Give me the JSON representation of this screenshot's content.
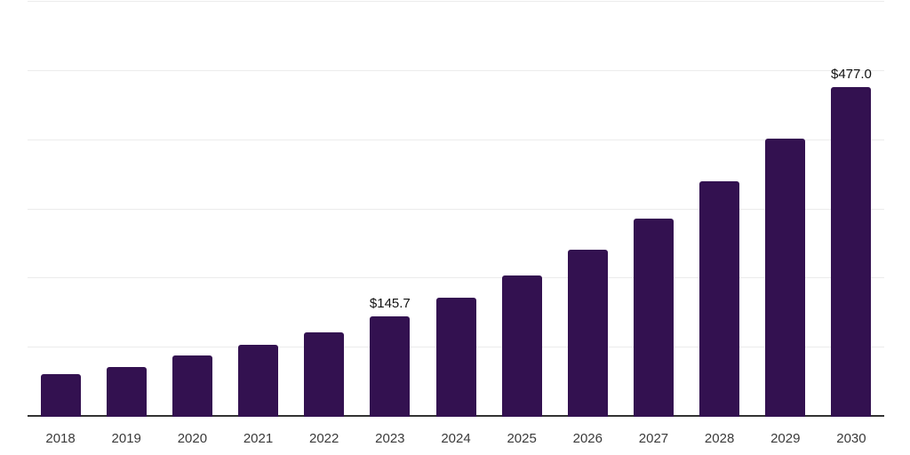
{
  "chart_data": {
    "type": "bar",
    "title": "",
    "xlabel": "",
    "ylabel": "",
    "categories": [
      "2018",
      "2019",
      "2020",
      "2021",
      "2022",
      "2023",
      "2024",
      "2025",
      "2026",
      "2027",
      "2028",
      "2029",
      "2030"
    ],
    "values": [
      61.9,
      72.4,
      88.3,
      104.2,
      122.5,
      145.7,
      172.6,
      204.5,
      242.2,
      286.9,
      339.9,
      402.6,
      477.0
    ],
    "data_labels": [
      {
        "category": "2023",
        "text": "$145.7"
      },
      {
        "category": "2030",
        "text": "$477.0"
      }
    ],
    "ylim": [
      0,
      600
    ],
    "grid_step": 100,
    "grid": true,
    "legend": false,
    "y_tick_labels_visible": false,
    "bar_color": "#331150",
    "gridline_color": "#ececec",
    "axis_color": "#333333",
    "tick_label_color": "#3a3a3a",
    "value_label_color": "#111111",
    "background_color": "#ffffff"
  }
}
